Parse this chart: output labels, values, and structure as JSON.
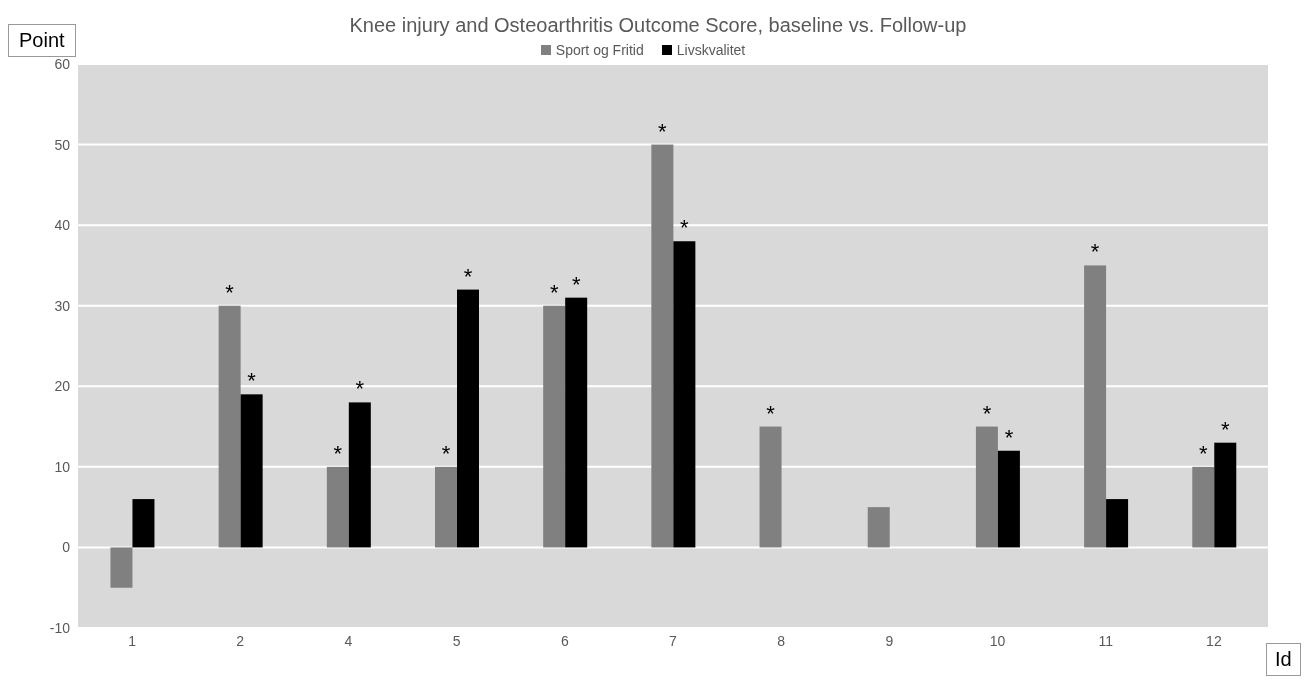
{
  "chart_data": {
    "type": "bar",
    "title": "Knee injury and Osteoarthritis Outcome Score, baseline vs. Follow-up",
    "ylabel": "Point",
    "xlabel": "Id",
    "categories": [
      "1",
      "2",
      "4",
      "5",
      "6",
      "7",
      "8",
      "9",
      "10",
      "11",
      "12"
    ],
    "series": [
      {
        "name": "Sport og Fritid",
        "color": "#808080",
        "values": [
          -5,
          30,
          10,
          10,
          30,
          50,
          15,
          5,
          15,
          35,
          10
        ]
      },
      {
        "name": "Livskvalitet",
        "color": "#000000",
        "values": [
          6,
          19,
          18,
          32,
          31,
          38,
          null,
          null,
          12,
          6,
          13
        ]
      }
    ],
    "ylim": [
      -10,
      60
    ],
    "yticks": [
      -10,
      0,
      10,
      20,
      30,
      40,
      50,
      60
    ],
    "grid": "y",
    "legend": "top",
    "annotations": [
      {
        "text": "*",
        "x": "2",
        "y": 30
      },
      {
        "text": "*",
        "x": "2",
        "y": 19
      },
      {
        "text": "*",
        "x": "4",
        "y": 10
      },
      {
        "text": "*",
        "x": "4",
        "y": 18
      },
      {
        "text": "*",
        "x": "5",
        "y": 10
      },
      {
        "text": "*",
        "x": "5",
        "y": 32
      },
      {
        "text": "*",
        "x": "6",
        "y": 30
      },
      {
        "text": "*",
        "x": "6",
        "y": 31
      },
      {
        "text": "*",
        "x": "7",
        "y": 50
      },
      {
        "text": "*",
        "x": "7",
        "y": 38
      },
      {
        "text": "*",
        "x": "8",
        "y": 15
      },
      {
        "text": "*",
        "x": "10",
        "y": 15
      },
      {
        "text": "*",
        "x": "10",
        "y": 12
      },
      {
        "text": "*",
        "x": "11",
        "y": 35
      },
      {
        "text": "*",
        "x": "12",
        "y": 10
      },
      {
        "text": "*",
        "x": "12",
        "y": 13
      }
    ]
  }
}
